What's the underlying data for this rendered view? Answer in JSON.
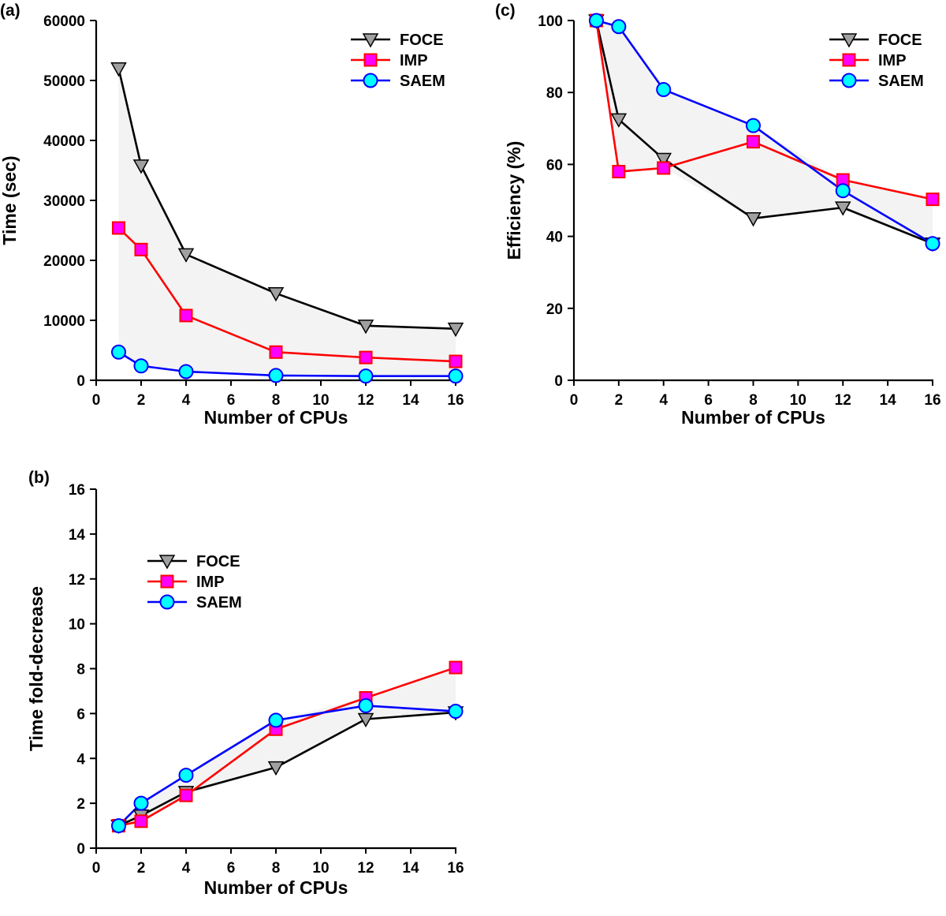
{
  "chart_data": [
    {
      "type": "line",
      "panel": "(a)",
      "title": "",
      "xlabel": "Number of CPUs",
      "ylabel": "Time (sec)",
      "x": [
        1,
        2,
        4,
        8,
        12,
        16
      ],
      "xlim": [
        0,
        16
      ],
      "ylim": [
        0,
        60000
      ],
      "xticks": [
        0,
        2,
        4,
        6,
        8,
        10,
        12,
        14,
        16
      ],
      "yticks": [
        0,
        10000,
        20000,
        30000,
        40000,
        50000,
        60000
      ],
      "grid": false,
      "legend_position": "top-right",
      "series": [
        {
          "name": "FOCE",
          "marker": "triangle-down",
          "line_color": "#000000",
          "marker_color": "#a0a0a0",
          "values": [
            52000,
            35800,
            21000,
            14500,
            9100,
            8600
          ]
        },
        {
          "name": "IMP",
          "marker": "square",
          "line_color": "#ff0000",
          "marker_color": "#ff00ff",
          "values": [
            25400,
            21800,
            10800,
            4700,
            3800,
            3150
          ]
        },
        {
          "name": "SAEM",
          "marker": "circle",
          "line_color": "#0000ff",
          "marker_color": "#00ffff",
          "values": [
            4700,
            2400,
            1450,
            800,
            700,
            700
          ]
        }
      ]
    },
    {
      "type": "line",
      "panel": "(b)",
      "title": "",
      "xlabel": "Number of CPUs",
      "ylabel": "Time fold-decrease",
      "x": [
        1,
        2,
        4,
        8,
        12,
        16
      ],
      "xlim": [
        0,
        16
      ],
      "ylim": [
        0,
        16
      ],
      "xticks": [
        0,
        2,
        4,
        6,
        8,
        10,
        12,
        14,
        16
      ],
      "yticks": [
        0,
        2,
        4,
        6,
        8,
        10,
        12,
        14,
        16
      ],
      "grid": false,
      "legend_position": "middle-left",
      "series": [
        {
          "name": "FOCE",
          "marker": "triangle-down",
          "line_color": "#000000",
          "marker_color": "#a0a0a0",
          "values": [
            1.0,
            1.45,
            2.5,
            3.6,
            5.75,
            6.05
          ]
        },
        {
          "name": "IMP",
          "marker": "square",
          "line_color": "#ff0000",
          "marker_color": "#ff00ff",
          "values": [
            1.0,
            1.2,
            2.35,
            5.3,
            6.7,
            8.05
          ]
        },
        {
          "name": "SAEM",
          "marker": "circle",
          "line_color": "#0000ff",
          "marker_color": "#00ffff",
          "values": [
            1.0,
            2.0,
            3.25,
            5.7,
            6.35,
            6.1
          ]
        }
      ]
    },
    {
      "type": "line",
      "panel": "(c)",
      "title": "",
      "xlabel": "Number of CPUs",
      "ylabel": "Efficiency (%)",
      "x": [
        1,
        2,
        4,
        8,
        12,
        16
      ],
      "xlim": [
        0,
        16
      ],
      "ylim": [
        0,
        100
      ],
      "xticks": [
        0,
        2,
        4,
        6,
        8,
        10,
        12,
        14,
        16
      ],
      "yticks": [
        0,
        20,
        40,
        60,
        80,
        100
      ],
      "grid": false,
      "legend_position": "top-right",
      "series": [
        {
          "name": "FOCE",
          "marker": "triangle-down",
          "line_color": "#000000",
          "marker_color": "#a0a0a0",
          "values": [
            100,
            72.5,
            61.5,
            45,
            48,
            38
          ]
        },
        {
          "name": "IMP",
          "marker": "square",
          "line_color": "#ff0000",
          "marker_color": "#ff00ff",
          "values": [
            100,
            58,
            59,
            66.3,
            55.7,
            50.3
          ]
        },
        {
          "name": "SAEM",
          "marker": "circle",
          "line_color": "#0000ff",
          "marker_color": "#00ffff",
          "values": [
            100,
            98.3,
            80.8,
            70.8,
            52.7,
            38
          ]
        }
      ]
    }
  ]
}
